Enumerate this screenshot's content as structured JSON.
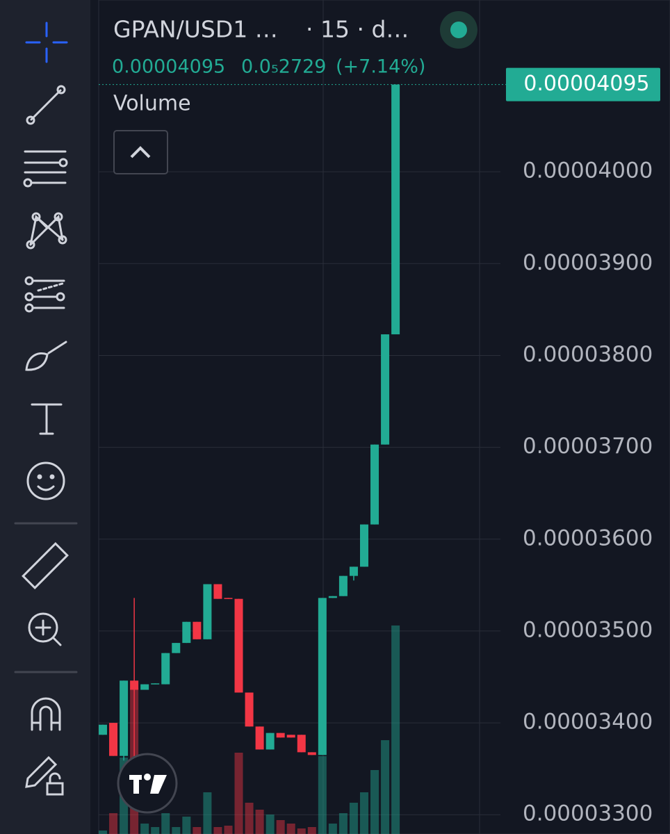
{
  "chart_data": {
    "type": "candlestick",
    "symbol": "GPAN/USD1 …",
    "interval": "· 15 · d…",
    "change": "0.0₅2729",
    "change_percent": "(+7.14%)",
    "volume_label": "Volume",
    "up_color": "#22ab94",
    "down_color": "#f23645",
    "open": [
      3.387e-05,
      3.4e-05,
      3.364e-05,
      3.446e-05,
      3.436e-05,
      3.442e-05,
      3.442e-05,
      3.476e-05,
      3.487e-05,
      3.51e-05,
      3.491e-05,
      3.551e-05,
      3.536e-05,
      3.535e-05,
      3.433e-05,
      3.396e-05,
      3.371e-05,
      3.389e-05,
      3.387e-05,
      3.387e-05,
      3.368e-05,
      3.365e-05,
      3.536e-05,
      3.538e-05,
      3.56e-05,
      3.57e-05,
      3.616e-05,
      3.703e-05,
      3.823e-05
    ],
    "high": [
      3.398e-05,
      3.4e-05,
      3.446e-05,
      3.536e-05,
      3.442e-05,
      3.443e-05,
      3.476e-05,
      3.487e-05,
      3.51e-05,
      3.51e-05,
      3.551e-05,
      3.551e-05,
      3.536e-05,
      3.535e-05,
      3.433e-05,
      3.396e-05,
      3.389e-05,
      3.389e-05,
      3.387e-05,
      3.387e-05,
      3.368e-05,
      3.536e-05,
      3.538e-05,
      3.56e-05,
      3.57e-05,
      3.616e-05,
      3.703e-05,
      3.823e-05,
      4.095e-05
    ],
    "low": [
      3.387e-05,
      3.364e-05,
      3.359e-05,
      3.355e-05,
      3.436e-05,
      3.442e-05,
      3.442e-05,
      3.476e-05,
      3.487e-05,
      3.491e-05,
      3.491e-05,
      3.535e-05,
      3.535e-05,
      3.433e-05,
      3.396e-05,
      3.371e-05,
      3.371e-05,
      3.384e-05,
      3.384e-05,
      3.368e-05,
      3.365e-05,
      3.365e-05,
      3.536e-05,
      3.538e-05,
      3.555e-05,
      3.57e-05,
      3.616e-05,
      3.703e-05,
      3.823e-05
    ],
    "close": [
      3.398e-05,
      3.364e-05,
      3.446e-05,
      3.436e-05,
      3.442e-05,
      3.443e-05,
      3.476e-05,
      3.487e-05,
      3.51e-05,
      3.491e-05,
      3.551e-05,
      3.535e-05,
      3.535e-05,
      3.433e-05,
      3.396e-05,
      3.371e-05,
      3.389e-05,
      3.384e-05,
      3.384e-05,
      3.368e-05,
      3.365e-05,
      3.536e-05,
      3.538e-05,
      3.56e-05,
      3.57e-05,
      3.616e-05,
      3.703e-05,
      3.823e-05,
      4.095e-05
    ],
    "volume": [
      5,
      30,
      110,
      210,
      15,
      10,
      30,
      10,
      25,
      10,
      60,
      10,
      12,
      117,
      45,
      35,
      28,
      20,
      15,
      8,
      10,
      112,
      15,
      30,
      45,
      60,
      92,
      135,
      300
    ],
    "ylim": [
      3.279e-05,
      4.187e-05
    ],
    "y2lim": [
      0,
      1200
    ],
    "yticks": [
      {
        "value": 4e-05,
        "label": "0.00004000"
      },
      {
        "value": 3.9e-05,
        "label": "0.00003900"
      },
      {
        "value": 3.8e-05,
        "label": "0.00003800"
      },
      {
        "value": 3.7e-05,
        "label": "0.00003700"
      },
      {
        "value": 3.6e-05,
        "label": "0.00003600"
      },
      {
        "value": 3.5e-05,
        "label": "0.00003500"
      },
      {
        "value": 3.4e-05,
        "label": "0.00003400"
      },
      {
        "value": 3.3e-05,
        "label": "0.00003300"
      }
    ],
    "grid": true
  }
}
